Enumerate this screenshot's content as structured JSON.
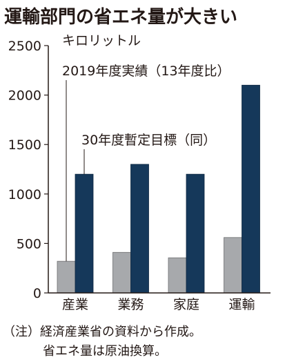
{
  "title": "運輸部門の省エネ量が大きい",
  "unit_label": "キロリットル",
  "notes": [
    "（注）経済産業省の資料から作成。",
    "省エネ量は原油換算。"
  ],
  "colors": {
    "series_2019": "#a7a9ac",
    "series_target": "#15385a"
  },
  "chart_data": {
    "type": "bar",
    "categories": [
      "産業",
      "業務",
      "家庭",
      "運輸"
    ],
    "series": [
      {
        "name": "2019年度実績（13年度比）",
        "values": [
          320,
          410,
          355,
          560
        ]
      },
      {
        "name": "30年度暫定目標（同）",
        "values": [
          1200,
          1300,
          1200,
          2100
        ]
      }
    ],
    "yticks": [
      0,
      500,
      1000,
      1500,
      2000,
      2500
    ],
    "ylim": [
      0,
      2500
    ],
    "legend_placement": "inline-annotations"
  }
}
